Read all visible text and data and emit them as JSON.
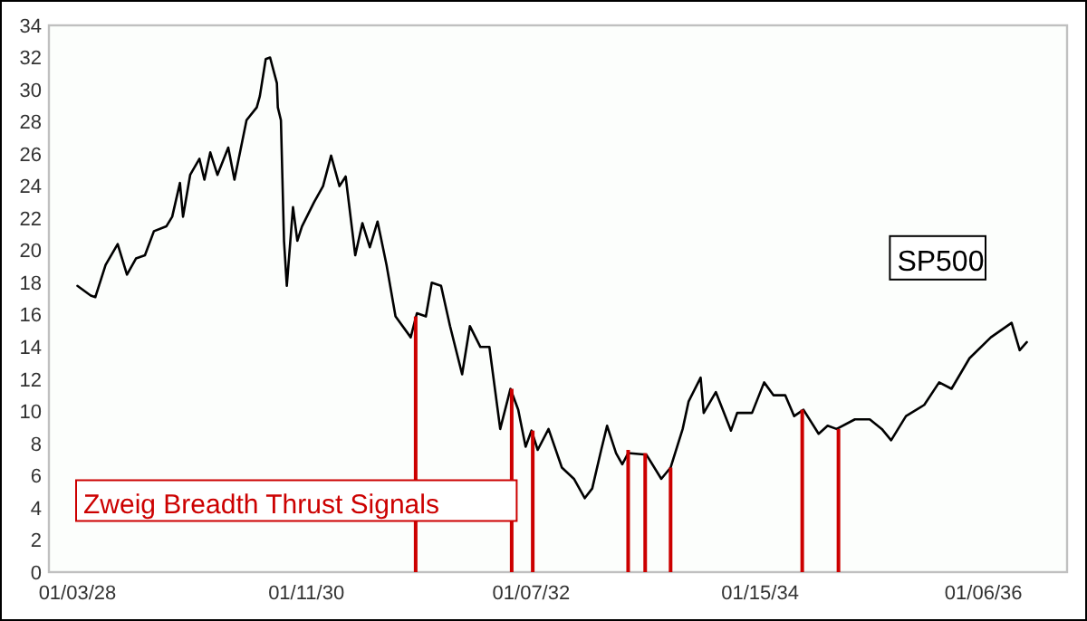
{
  "chart_data": {
    "type": "line",
    "xlim": [
      "1927-10-03",
      "1936-10-02"
    ],
    "xticks": [
      {
        "value": "1928-01-03",
        "label": "01/03/28"
      },
      {
        "value": "1930-01-11",
        "label": "01/11/30"
      },
      {
        "value": "1932-01-07",
        "label": "01/07/32"
      },
      {
        "value": "1934-01-15",
        "label": "01/15/34"
      },
      {
        "value": "1936-01-06",
        "label": "01/06/36"
      }
    ],
    "ylim": [
      0,
      34
    ],
    "yticks": [
      0,
      2,
      4,
      6,
      8,
      10,
      12,
      14,
      16,
      18,
      20,
      22,
      24,
      26,
      28,
      30,
      32,
      34
    ],
    "series": [
      {
        "name": "SP500",
        "color": "#000000",
        "x": [
          "1928-01-03",
          "1928-02-15",
          "1928-03-01",
          "1928-04-03",
          "1928-05-12",
          "1928-06-11",
          "1928-07-10",
          "1928-08-08",
          "1928-09-06",
          "1928-10-16",
          "1928-11-04",
          "1928-11-29",
          "1928-12-09",
          "1929-01-01",
          "1929-01-31",
          "1929-02-16",
          "1929-03-07",
          "1929-03-30",
          "1929-05-04",
          "1929-05-24",
          "1929-07-02",
          "1929-08-04",
          "1929-08-14",
          "1929-09-02",
          "1929-09-16",
          "1929-10-08",
          "1929-10-11",
          "1929-10-21",
          "1929-10-31",
          "1929-11-09",
          "1929-11-29",
          "1929-12-13",
          "1929-12-28",
          "1930-02-05",
          "1930-03-06",
          "1930-04-01",
          "1930-04-28",
          "1930-05-18",
          "1930-06-18",
          "1930-07-11",
          "1930-08-04",
          "1930-08-29",
          "1930-09-27",
          "1930-10-26",
          "1930-12-14",
          "1931-01-03",
          "1931-02-01",
          "1931-02-20",
          "1931-03-22",
          "1931-04-20",
          "1931-05-29",
          "1931-06-23",
          "1931-07-27",
          "1931-08-25",
          "1931-09-29",
          "1931-11-01",
          "1931-11-26",
          "1931-12-20",
          "1932-01-08",
          "1932-01-28",
          "1932-03-03",
          "1932-04-15",
          "1932-05-24",
          "1932-06-28",
          "1932-07-22",
          "1932-08-20",
          "1932-09-08",
          "1932-10-07",
          "1932-10-27",
          "1932-11-15",
          "1933-01-13",
          "1933-03-02",
          "1933-04-01",
          "1933-05-10",
          "1933-05-29",
          "1933-07-07",
          "1933-07-17",
          "1933-08-25",
          "1933-10-13",
          "1933-11-02",
          "1933-12-20",
          "1934-01-28",
          "1934-02-27",
          "1934-04-06",
          "1934-05-05",
          "1934-06-04",
          "1934-07-23",
          "1934-08-21",
          "1934-09-19",
          "1934-11-17",
          "1935-01-04",
          "1935-02-12",
          "1935-03-14",
          "1935-05-01",
          "1935-06-29",
          "1935-08-16",
          "1935-09-25",
          "1935-11-22",
          "1936-01-30",
          "1936-04-06",
          "1936-05-02",
          "1936-05-25"
        ],
        "values": [
          17.8,
          17.2,
          17.1,
          19.1,
          20.4,
          18.5,
          19.5,
          19.7,
          21.2,
          21.5,
          22.1,
          24.2,
          22.1,
          24.7,
          25.7,
          24.4,
          26.1,
          24.7,
          26.4,
          24.4,
          28.1,
          28.9,
          29.6,
          31.9,
          32.0,
          30.4,
          28.9,
          28.1,
          20.6,
          17.8,
          22.7,
          20.6,
          21.5,
          23.0,
          24.0,
          25.9,
          24.0,
          24.6,
          19.7,
          21.7,
          20.2,
          21.8,
          19.1,
          15.9,
          14.6,
          16.1,
          15.9,
          18.0,
          17.8,
          15.3,
          12.3,
          15.3,
          14.0,
          14.0,
          8.9,
          11.4,
          10.1,
          7.8,
          8.8,
          7.6,
          8.9,
          6.5,
          5.8,
          4.6,
          5.2,
          7.6,
          9.1,
          7.4,
          6.7,
          7.4,
          7.3,
          5.8,
          6.5,
          8.9,
          10.6,
          12.1,
          9.9,
          11.2,
          8.8,
          9.9,
          9.9,
          11.8,
          11.0,
          11.0,
          9.7,
          10.1,
          8.6,
          9.1,
          8.9,
          9.5,
          9.5,
          8.9,
          8.2,
          9.7,
          10.4,
          11.8,
          11.4,
          13.3,
          14.6,
          15.5,
          13.8,
          14.3
        ]
      },
      {
        "type": "bar",
        "name": "Zweig Breadth Thrust Signals",
        "color": "#cc0000",
        "x": [
          "1930-12-30",
          "1931-11-05",
          "1932-01-12",
          "1932-11-15",
          "1933-01-09",
          "1933-04-01",
          "1934-05-31",
          "1934-09-25"
        ],
        "values": [
          15.9,
          11.4,
          8.8,
          7.6,
          7.4,
          6.5,
          10.1,
          8.9
        ]
      }
    ]
  }
}
